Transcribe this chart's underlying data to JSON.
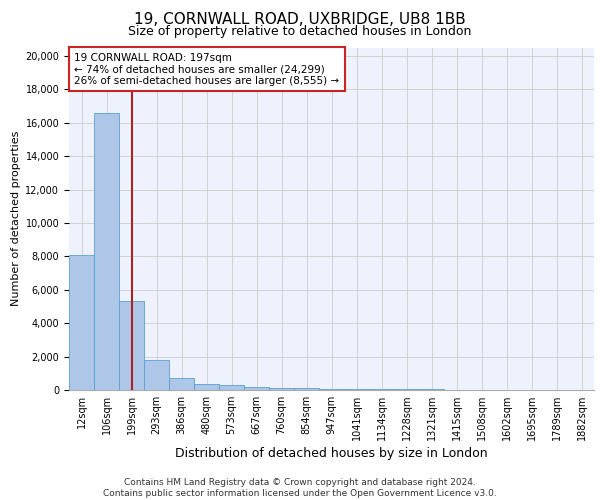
{
  "title_line1": "19, CORNWALL ROAD, UXBRIDGE, UB8 1BB",
  "title_line2": "Size of property relative to detached houses in London",
  "xlabel": "Distribution of detached houses by size in London",
  "ylabel": "Number of detached properties",
  "footer_line1": "Contains HM Land Registry data © Crown copyright and database right 2024.",
  "footer_line2": "Contains public sector information licensed under the Open Government Licence v3.0.",
  "annotation_title": "19 CORNWALL ROAD: 197sqm",
  "annotation_line2": "← 74% of detached houses are smaller (24,299)",
  "annotation_line3": "26% of semi-detached houses are larger (8,555) →",
  "property_size": 197,
  "bar_categories": [
    "12sqm",
    "106sqm",
    "199sqm",
    "293sqm",
    "386sqm",
    "480sqm",
    "573sqm",
    "667sqm",
    "760sqm",
    "854sqm",
    "947sqm",
    "1041sqm",
    "1134sqm",
    "1228sqm",
    "1321sqm",
    "1415sqm",
    "1508sqm",
    "1602sqm",
    "1695sqm",
    "1789sqm",
    "1882sqm"
  ],
  "bar_heights": [
    8100,
    16600,
    5300,
    1800,
    700,
    380,
    270,
    180,
    130,
    100,
    80,
    60,
    50,
    40,
    30,
    25,
    20,
    15,
    12,
    10,
    8
  ],
  "bar_color": "#aec6e8",
  "bar_edge_color": "#5a9fd4",
  "vline_color": "#aa2222",
  "annotation_box_color": "#cc2222",
  "ylim": [
    0,
    20500
  ],
  "yticks": [
    0,
    2000,
    4000,
    6000,
    8000,
    10000,
    12000,
    14000,
    16000,
    18000,
    20000
  ],
  "bg_color": "#eef2fc",
  "grid_color": "#cccccc",
  "title_fontsize": 11,
  "subtitle_fontsize": 9,
  "ylabel_fontsize": 8,
  "xlabel_fontsize": 9,
  "tick_fontsize": 7,
  "footer_fontsize": 6.5
}
